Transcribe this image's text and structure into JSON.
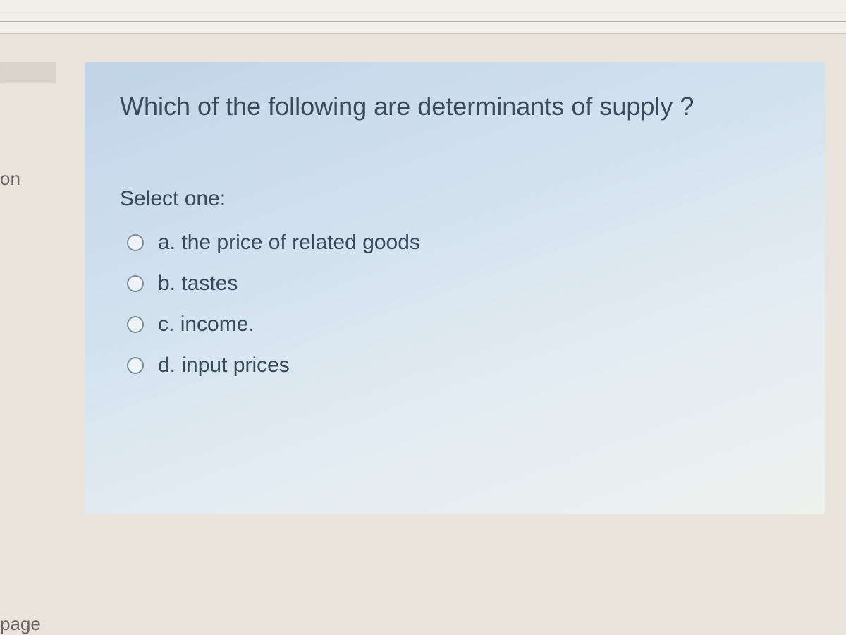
{
  "sidebar": {
    "nav_label_top": "on",
    "nav_label_bottom": "page"
  },
  "question": {
    "prompt": "Which of the following are determinants of supply ?",
    "instruction": "Select one:",
    "options": [
      {
        "letter": "a.",
        "text": "the price of related goods"
      },
      {
        "letter": "b.",
        "text": "tastes"
      },
      {
        "letter": "c.",
        "text": "income."
      },
      {
        "letter": "d.",
        "text": "input prices"
      }
    ]
  },
  "styling": {
    "card_gradient_start": "#c0d4e8",
    "card_gradient_end": "#eef1ee",
    "text_color": "#3a4a5a",
    "sidebar_text_color": "#6a6660",
    "background_color": "#e8e4dc",
    "radio_border_color": "#7a8a96",
    "question_fontsize": 36,
    "option_fontsize": 30
  }
}
